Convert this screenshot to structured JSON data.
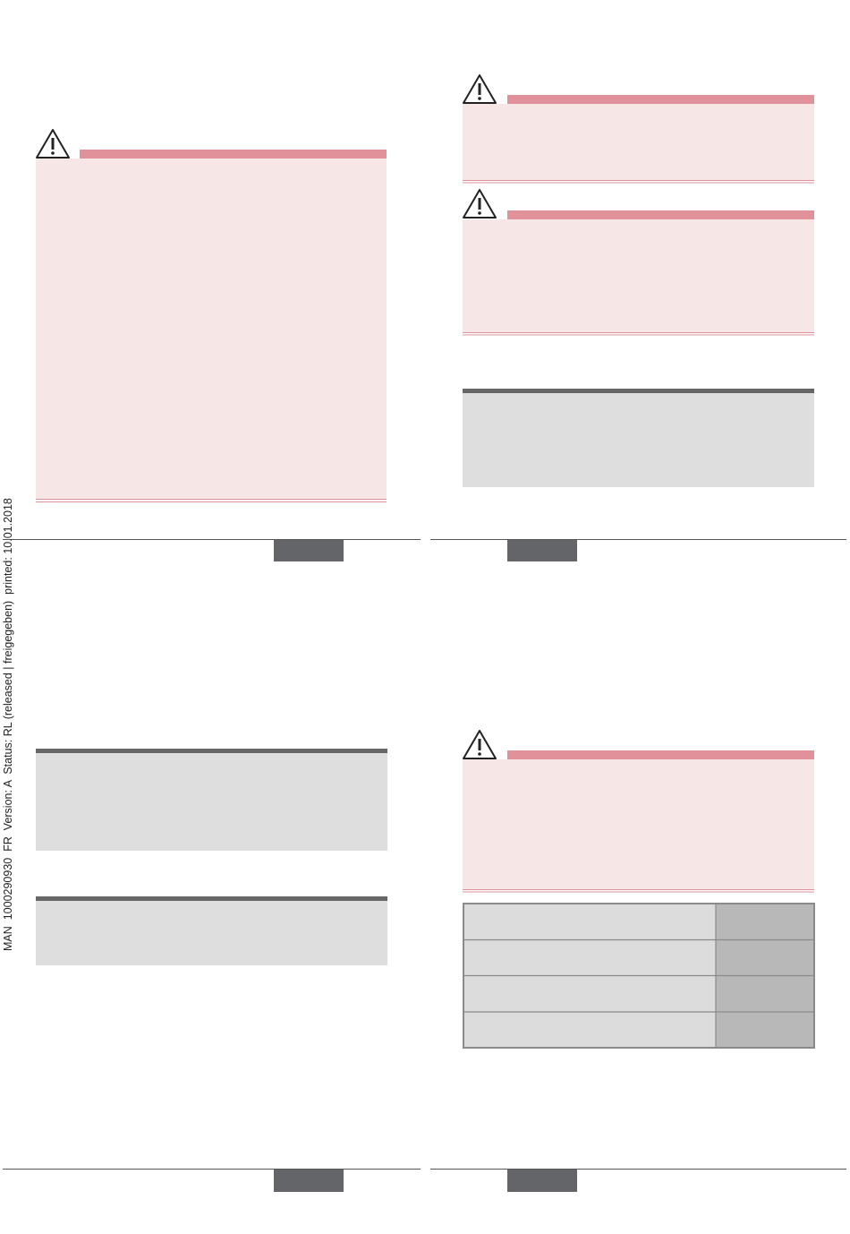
{
  "margin_label": "MAN  1000290930  FR  Version: A  Status: RL (released | freigegeben)  printed: 10.01.2018"
}
